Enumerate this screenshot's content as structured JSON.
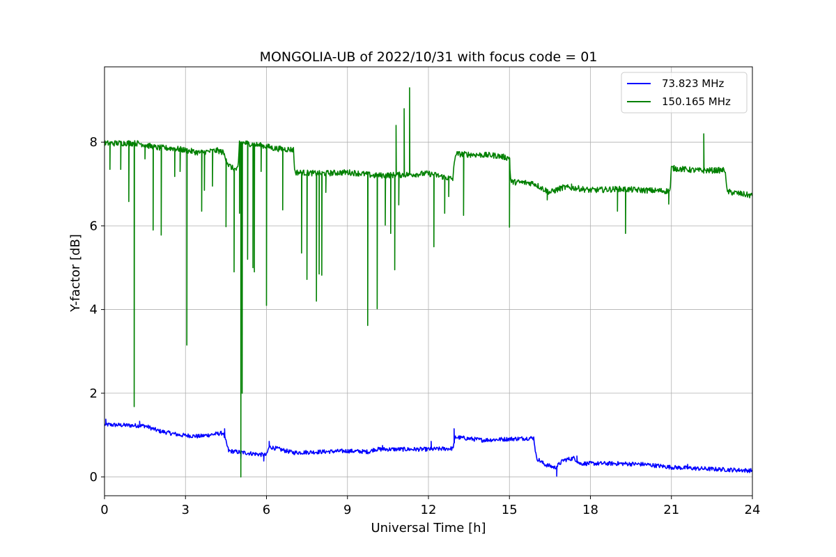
{
  "chart_data": {
    "type": "line",
    "title": "MONGOLIA-UB of 2022/10/31 with focus code = 01",
    "xlabel": "Universal Time [h]",
    "ylabel": "Y-factor [dB]",
    "xlim": [
      0,
      24
    ],
    "ylim": [
      -0.45,
      9.8
    ],
    "x_ticks": [
      0,
      3,
      6,
      9,
      12,
      15,
      18,
      21,
      24
    ],
    "x_tick_labels": [
      "0",
      "3",
      "6",
      "9",
      "12",
      "15",
      "18",
      "21",
      "24"
    ],
    "y_ticks": [
      0,
      2,
      4,
      6,
      8
    ],
    "y_tick_labels": [
      "0",
      "2",
      "4",
      "6",
      "8"
    ],
    "grid": true,
    "legend_position": "top-right",
    "series": [
      {
        "name": "73.823 MHz",
        "legend_label": "  73.823 MHz",
        "color": "#0000ff",
        "segments": [
          [
            0,
            1.25
          ],
          [
            1.5,
            1.22
          ],
          [
            2,
            1.1
          ],
          [
            2.8,
            1.0
          ],
          [
            3.5,
            0.97
          ],
          [
            4.4,
            1.05
          ],
          [
            4.6,
            0.62
          ],
          [
            6,
            0.52
          ],
          [
            6.1,
            0.72
          ],
          [
            7,
            0.58
          ],
          [
            9,
            0.62
          ],
          [
            9.8,
            0.6
          ],
          [
            10,
            0.66
          ],
          [
            12,
            0.66
          ],
          [
            12.9,
            0.68
          ],
          [
            13.0,
            0.95
          ],
          [
            14,
            0.88
          ],
          [
            15.9,
            0.93
          ],
          [
            16.0,
            0.45
          ],
          [
            16.3,
            0.3
          ],
          [
            16.7,
            0.22
          ],
          [
            17,
            0.4
          ],
          [
            17.4,
            0.45
          ],
          [
            17.6,
            0.32
          ],
          [
            19,
            0.32
          ],
          [
            20,
            0.3
          ],
          [
            21,
            0.23
          ],
          [
            22,
            0.2
          ],
          [
            24,
            0.15
          ]
        ],
        "spikes": [
          [
            0.05,
            1.38
          ],
          [
            1.3,
            1.33
          ],
          [
            4.45,
            1.15
          ],
          [
            5.05,
            0.42
          ],
          [
            5.9,
            0.38
          ],
          [
            6.1,
            0.85
          ],
          [
            10.3,
            0.75
          ],
          [
            12.1,
            0.85
          ],
          [
            12.95,
            1.15
          ],
          [
            16.75,
            0.02
          ],
          [
            17.5,
            0.5
          ],
          [
            21.6,
            0.3
          ]
        ],
        "noise": 0.05
      },
      {
        "name": "150.165 MHz",
        "legend_label": "150.165 MHz",
        "color": "#008000",
        "segments": [
          [
            0,
            7.97
          ],
          [
            0.9,
            7.98
          ],
          [
            1.3,
            7.97
          ],
          [
            1.9,
            7.87
          ],
          [
            2.6,
            7.85
          ],
          [
            3.5,
            7.75
          ],
          [
            4.2,
            7.8
          ],
          [
            4.4,
            7.75
          ],
          [
            4.6,
            7.45
          ],
          [
            4.8,
            7.35
          ],
          [
            4.95,
            7.35
          ],
          [
            5.0,
            8.0
          ],
          [
            6.0,
            7.9
          ],
          [
            6.3,
            7.85
          ],
          [
            7.0,
            7.82
          ],
          [
            7.05,
            7.28
          ],
          [
            8,
            7.25
          ],
          [
            9,
            7.28
          ],
          [
            9.5,
            7.25
          ],
          [
            10,
            7.2
          ],
          [
            11,
            7.22
          ],
          [
            12,
            7.25
          ],
          [
            12.9,
            7.12
          ],
          [
            13.0,
            7.72
          ],
          [
            14.5,
            7.68
          ],
          [
            15.0,
            7.62
          ],
          [
            15.05,
            7.05
          ],
          [
            15.9,
            7.02
          ],
          [
            16.2,
            6.9
          ],
          [
            16.5,
            6.8
          ],
          [
            17,
            6.92
          ],
          [
            17.5,
            6.9
          ],
          [
            18,
            6.85
          ],
          [
            19,
            6.88
          ],
          [
            20,
            6.85
          ],
          [
            20.95,
            6.83
          ],
          [
            21.0,
            7.38
          ],
          [
            22,
            7.32
          ],
          [
            23,
            7.33
          ],
          [
            23.05,
            6.82
          ],
          [
            24,
            6.72
          ]
        ],
        "spikes": [
          [
            0.2,
            7.35
          ],
          [
            0.6,
            7.35
          ],
          [
            0.9,
            6.58
          ],
          [
            1.1,
            1.68
          ],
          [
            1.5,
            7.6
          ],
          [
            1.8,
            5.9
          ],
          [
            2.1,
            5.78
          ],
          [
            2.6,
            7.18
          ],
          [
            2.8,
            7.3
          ],
          [
            3.05,
            3.15
          ],
          [
            3.6,
            6.35
          ],
          [
            3.7,
            6.85
          ],
          [
            4.0,
            6.95
          ],
          [
            4.5,
            5.98
          ],
          [
            4.8,
            4.9
          ],
          [
            5.0,
            6.3
          ],
          [
            5.05,
            0.0
          ],
          [
            5.1,
            2.0
          ],
          [
            5.3,
            5.2
          ],
          [
            5.5,
            5.0
          ],
          [
            5.55,
            4.9
          ],
          [
            5.8,
            7.3
          ],
          [
            6.0,
            4.1
          ],
          [
            6.6,
            6.38
          ],
          [
            7.3,
            5.35
          ],
          [
            7.5,
            4.72
          ],
          [
            7.85,
            4.2
          ],
          [
            7.95,
            4.85
          ],
          [
            8.05,
            4.82
          ],
          [
            8.2,
            6.8
          ],
          [
            9.75,
            3.62
          ],
          [
            10.1,
            4.02
          ],
          [
            10.4,
            6.02
          ],
          [
            10.6,
            5.82
          ],
          [
            10.75,
            4.95
          ],
          [
            10.8,
            8.4
          ],
          [
            10.9,
            6.5
          ],
          [
            11.1,
            8.8
          ],
          [
            11.3,
            9.3
          ],
          [
            12.2,
            5.5
          ],
          [
            12.6,
            6.3
          ],
          [
            12.75,
            6.7
          ],
          [
            13.3,
            6.25
          ],
          [
            15.0,
            5.97
          ],
          [
            16.4,
            6.62
          ],
          [
            17.3,
            7.0
          ],
          [
            19.0,
            6.35
          ],
          [
            19.3,
            5.82
          ],
          [
            20.9,
            6.52
          ],
          [
            22.2,
            8.2
          ]
        ],
        "noise": 0.07
      }
    ]
  }
}
